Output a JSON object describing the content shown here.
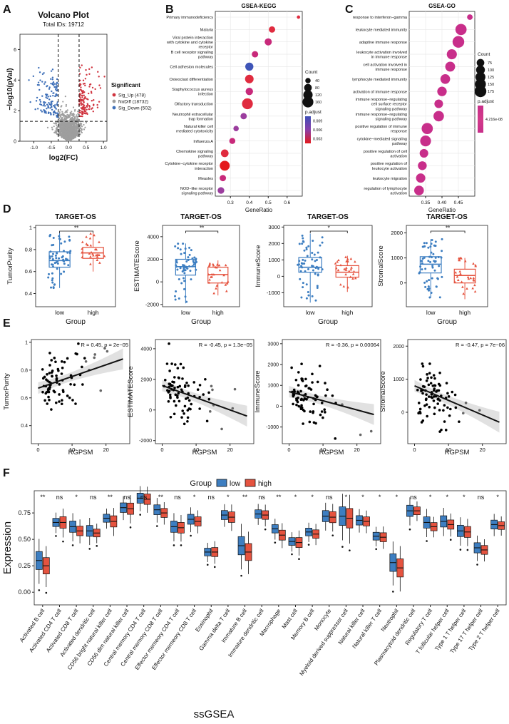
{
  "palette": {
    "low": "#3D7EC1",
    "high": "#E5533F",
    "up": "#D0343F",
    "nodiff": "#9E9E9E",
    "down": "#3E6FB8",
    "dot": "#000000",
    "grid": "#E6E6E6",
    "panel": "#EBEBEB"
  },
  "panel_letters": [
    "A",
    "B",
    "C",
    "D",
    "E",
    "F"
  ],
  "volcano": {
    "title": "Volcano Plot",
    "subtitle": "Total IDs: 19712",
    "xlabel": "log2(FC)",
    "ylabel": "−log10(pVal)",
    "xticks": [
      "-1.0",
      "-0.5",
      "0.0",
      "0.5",
      "1.0"
    ],
    "yticks": [
      "0",
      "2",
      "4",
      "6"
    ],
    "legend_title": "Significant",
    "legend": [
      "Sig_Up (478)",
      "NoDiff (18732)",
      "Sig_Down (502)"
    ]
  },
  "kegg": {
    "title": "GSEA-KEGG",
    "xlabel": "GeneRatio",
    "xticks": [
      "0.3",
      "0.4",
      "0.5",
      "0.6"
    ],
    "count_title": "Count",
    "count_ticks": [
      "40",
      "80",
      "120",
      "160"
    ],
    "padj_title": "p.adjust",
    "padj_ticks": [
      "0.009",
      "0.006",
      "0.003"
    ]
  },
  "go": {
    "title": "GSEA-GO",
    "xlabel": "GeneRatio",
    "xticks": [
      "0.35",
      "0.40",
      "0.45"
    ],
    "count_title": "Count",
    "count_ticks": [
      "75",
      "100",
      "125",
      "150",
      "175"
    ],
    "padj_title": "p.adjust",
    "padj_ticks": [
      "4.216e-08"
    ]
  },
  "box_common": {
    "title": "TARGET-OS",
    "xlabel": "Group",
    "groups": [
      "low",
      "high"
    ]
  },
  "scatter_common": {
    "xlabel": "RGPSM",
    "xticks": [
      "0",
      "10",
      "20"
    ]
  },
  "ssgsea": {
    "legend_title": "Group",
    "legend": [
      "low",
      "high"
    ],
    "ylabel": "Expression",
    "xlabel": "ssGSEA",
    "yticks": [
      "0.00",
      "0.25",
      "0.50",
      "0.75"
    ]
  },
  "chart_data": [
    {
      "type": "scatter",
      "panel": "A",
      "title": "Volcano Plot",
      "subtitle": "Total IDs: 19712",
      "xlabel": "log2(FC)",
      "ylabel": "−log10(pVal)",
      "xlim": [
        -1.4,
        1.1
      ],
      "ylim": [
        0,
        7
      ],
      "thresholds": {
        "log2fc": [
          -0.3,
          0.3
        ],
        "neglog10p": 1.3
      },
      "series": [
        {
          "name": "Sig_Up (478)",
          "count": 478
        },
        {
          "name": "NoDiff (18732)",
          "count": 18732
        },
        {
          "name": "Sig_Down (502)",
          "count": 502
        }
      ]
    },
    {
      "type": "scatter",
      "panel": "B",
      "title": "GSEA-KEGG",
      "xlabel": "GeneRatio",
      "xlim": [
        0.22,
        0.68
      ],
      "categories": [
        "Primary immunodeficiency",
        "Malaria",
        "Viral protein interaction with cytokine and cytokine receptor",
        "B cell receptor signaling pathway",
        "Cell adhesion molecules",
        "Osteoclast differentiation",
        "Staphylococcus aureus infection",
        "Olfactory transduction",
        "Neutrophil extracellular trap formation",
        "Natural killer cell mediated cytotoxicity",
        "Influenza A",
        "Chemokine signaling pathway",
        "Cytokine−cytokine receptor interaction",
        "Measles",
        "NOD−like receptor signaling pathway"
      ],
      "gene_ratio": [
        0.66,
        0.52,
        0.5,
        0.43,
        0.4,
        0.4,
        0.4,
        0.39,
        0.37,
        0.33,
        0.31,
        0.27,
        0.27,
        0.26,
        0.25
      ],
      "count": [
        15,
        55,
        70,
        55,
        90,
        100,
        75,
        160,
        55,
        40,
        50,
        80,
        135,
        55,
        60
      ],
      "p_adjust": [
        0.002,
        0.0025,
        0.004,
        0.005,
        0.011,
        0.003,
        0.005,
        0.0015,
        0.006,
        0.007,
        0.005,
        0.002,
        0.001,
        0.004,
        0.006
      ]
    },
    {
      "type": "scatter",
      "panel": "C",
      "title": "GSEA-GO",
      "xlabel": "GeneRatio",
      "xlim": [
        0.3,
        0.5
      ],
      "categories": [
        "response to interferon−gamma",
        "leukocyte mediated immunity",
        "adaptive immune response",
        "leukocyte activation involved in immune response",
        "cell activation involved in immune response",
        "lymphocyte mediated immunity",
        "activation of immune response",
        "immune response−regulating cell surface receptor signaling pathway",
        "immune response−regulating signaling pathway",
        "positive regulation of immune response",
        "cytokine−mediated signaling pathway",
        "positive regulation of cell activation",
        "positive regulation of leukocyte activation",
        "leukocyte migration",
        "regulation of lymphocyte activation"
      ],
      "gene_ratio": [
        0.485,
        0.458,
        0.45,
        0.43,
        0.425,
        0.41,
        0.4,
        0.39,
        0.39,
        0.355,
        0.35,
        0.345,
        0.34,
        0.335,
        0.33
      ],
      "count": [
        40,
        160,
        175,
        130,
        125,
        120,
        115,
        95,
        140,
        160,
        150,
        95,
        100,
        110,
        120
      ],
      "p_adjust": [
        4.216e-08,
        4.216e-08,
        4.216e-08,
        4.216e-08,
        4.216e-08,
        4.216e-08,
        4.216e-08,
        4.216e-08,
        4.216e-08,
        4.216e-08,
        4.216e-08,
        4.216e-08,
        4.216e-08,
        4.216e-08,
        4.216e-08
      ]
    },
    {
      "type": "box",
      "panel": "D1",
      "title": "TARGET-OS",
      "xlabel": "Group",
      "ylabel": "TumorPurity",
      "categories": [
        "low",
        "high"
      ],
      "ylim": [
        0.28,
        1.02
      ],
      "yticks": [
        0.4,
        0.6,
        0.8,
        1.0
      ],
      "significance": "**",
      "series": [
        {
          "name": "low",
          "q": [
            0.45,
            0.64,
            0.7,
            0.78,
            0.95
          ]
        },
        {
          "name": "high",
          "q": [
            0.6,
            0.72,
            0.77,
            0.82,
            0.95
          ]
        }
      ]
    },
    {
      "type": "box",
      "panel": "D2",
      "title": "TARGET-OS",
      "xlabel": "Group",
      "ylabel": "ESTIMATEScore",
      "categories": [
        "low",
        "high"
      ],
      "ylim": [
        -2200,
        5000
      ],
      "yticks": [
        -2000,
        0,
        2000,
        4000
      ],
      "significance": "**",
      "series": [
        {
          "name": "low",
          "q": [
            -1900,
            600,
            1350,
            2000,
            3400
          ]
        },
        {
          "name": "high",
          "q": [
            -1200,
            -100,
            650,
            1300,
            1900
          ]
        }
      ]
    },
    {
      "type": "box",
      "panel": "D3",
      "title": "TARGET-OS",
      "xlabel": "Group",
      "ylabel": "ImmuneScore",
      "categories": [
        "low",
        "high"
      ],
      "ylim": [
        -1850,
        3100
      ],
      "yticks": [
        -1000,
        0,
        1000,
        2000,
        3000
      ],
      "significance": "*",
      "series": [
        {
          "name": "low",
          "q": [
            -1600,
            250,
            550,
            1150,
            2600
          ]
        },
        {
          "name": "high",
          "q": [
            -950,
            -50,
            250,
            650,
            1250
          ]
        }
      ]
    },
    {
      "type": "box",
      "panel": "D4",
      "title": "TARGET-OS",
      "xlabel": "Group",
      "ylabel": "StromalScore",
      "categories": [
        "low",
        "high"
      ],
      "ylim": [
        -950,
        2300
      ],
      "yticks": [
        0,
        1000,
        2000
      ],
      "significance": "**",
      "series": [
        {
          "name": "low",
          "q": [
            -600,
            400,
            750,
            1050,
            1750
          ]
        },
        {
          "name": "high",
          "q": [
            -650,
            0,
            300,
            550,
            1000
          ]
        }
      ]
    },
    {
      "type": "scatter",
      "panel": "E1",
      "xlabel": "RGPSM",
      "ylabel": "TumorPurity",
      "annotation": "R = 0.45, p = 2e−05",
      "xlim": [
        -2,
        27
      ],
      "ylim": [
        0.27,
        1.02
      ],
      "yticks": [
        0.4,
        0.6,
        0.8,
        1.0
      ],
      "fit": {
        "x": [
          0,
          25
        ],
        "y": [
          0.67,
          0.88
        ]
      }
    },
    {
      "type": "scatter",
      "panel": "E2",
      "xlabel": "RGPSM",
      "ylabel": "ESTIMATEScore",
      "annotation": "R = -0.45, p = 1.3e−05",
      "xlim": [
        -2,
        27
      ],
      "ylim": [
        -2200,
        4600
      ],
      "yticks": [
        -2000,
        0,
        2000,
        4000
      ],
      "fit": {
        "x": [
          0,
          25
        ],
        "y": [
          1600,
          -400
        ]
      }
    },
    {
      "type": "scatter",
      "panel": "E3",
      "xlabel": "RGPSM",
      "ylabel": "ImmuneScore",
      "annotation": "R = -0.36, p = 0.00064",
      "xlim": [
        -2,
        27
      ],
      "ylim": [
        -1800,
        3200
      ],
      "yticks": [
        -1000,
        0,
        1000,
        2000,
        3000
      ],
      "fit": {
        "x": [
          0,
          25
        ],
        "y": [
          700,
          -400
        ]
      }
    },
    {
      "type": "scatter",
      "panel": "E4",
      "xlabel": "RGPSM",
      "ylabel": "StromalScore",
      "annotation": "R = -0.47, p = 7e−06",
      "xlim": [
        -2,
        27
      ],
      "ylim": [
        -950,
        2200
      ],
      "yticks": [
        0,
        1000,
        2000
      ],
      "fit": {
        "x": [
          0,
          25
        ],
        "y": [
          800,
          -300
        ]
      }
    },
    {
      "type": "box",
      "panel": "F",
      "xlabel": "ssGSEA",
      "ylabel": "Expression",
      "ylim": [
        -0.12,
        0.96
      ],
      "yticks": [
        0.0,
        0.25,
        0.5,
        0.75
      ],
      "categories": [
        "Activated B cell",
        "Activated CD4 T cell",
        "Activated CD8 T cell",
        "Activated dendritic cell",
        "CD56 bright natural killer cell",
        "CD56 dim natural killer cell",
        "Central memory CD4 T cell",
        "Central memory CD8 T cell",
        "Effector memeory CD4 T cell",
        "Effector memeory CD8 T cell",
        "Eosinophil",
        "Gamma delta T cell",
        "Immature  B cell",
        "Immature dendritic cell",
        "Macrophage",
        "Mast cell",
        "Memory B cell",
        "Monocyte",
        "Myeloid derived suppressor cell",
        "Natural killer cell",
        "Natural killer T cell",
        "Neutrophil",
        "Plasmacytoid dendritic cell",
        "Regulatory T cell",
        "T follicular helper cell",
        "Type 1 T helper cell",
        "Type 17 T helper cell",
        "Type 2 T helper cell"
      ],
      "significance": [
        "**",
        "ns",
        "*",
        "ns",
        "**",
        "ns",
        "ns",
        "**",
        "ns",
        "*",
        "ns",
        "*",
        "**",
        "ns",
        "**",
        "*",
        "*",
        "ns",
        "*",
        "*",
        "*",
        "*",
        "ns",
        "*",
        "*",
        "*",
        "ns",
        "*"
      ],
      "series": [
        {
          "name": "low",
          "median": [
            0.3,
            0.66,
            0.62,
            0.58,
            0.7,
            0.8,
            0.89,
            0.78,
            0.62,
            0.69,
            0.38,
            0.73,
            0.44,
            0.74,
            0.6,
            0.48,
            0.57,
            0.72,
            0.72,
            0.68,
            0.53,
            0.28,
            0.77,
            0.66,
            0.67,
            0.58,
            0.42,
            0.64
          ]
        },
        {
          "name": "high",
          "median": [
            0.25,
            0.66,
            0.58,
            0.56,
            0.67,
            0.79,
            0.88,
            0.75,
            0.61,
            0.67,
            0.38,
            0.71,
            0.38,
            0.73,
            0.54,
            0.47,
            0.55,
            0.71,
            0.7,
            0.67,
            0.52,
            0.23,
            0.77,
            0.62,
            0.64,
            0.57,
            0.4,
            0.63
          ]
        }
      ]
    }
  ],
  "labels": {
    "R_prefix": "R = ",
    "p_prefix": ", p = "
  }
}
